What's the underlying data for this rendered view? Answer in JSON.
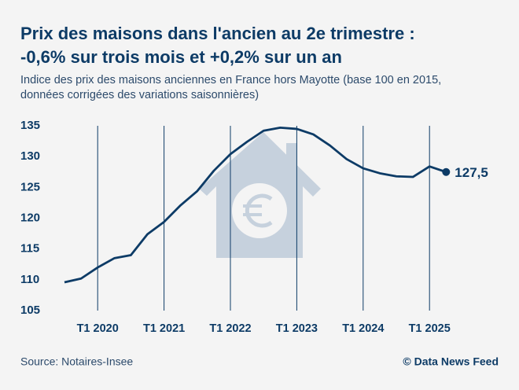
{
  "chart_data": {
    "type": "line",
    "title": [
      "Prix des maisons dans l'ancien au 2e trimestre :",
      "-0,6% sur trois mois et +0,2% sur un an"
    ],
    "subtitle": [
      "Indice des prix des maisons anciennes en France hors Mayotte (base 100 en 2015,",
      "données corrigées des variations saisonnières)"
    ],
    "categories": [
      null,
      null,
      "T1 2020",
      null,
      null,
      null,
      "T1 2021",
      null,
      null,
      null,
      "T1 2022",
      null,
      null,
      null,
      "T1 2023",
      null,
      null,
      null,
      "T1 2024",
      null,
      null,
      null,
      "T1 2025",
      null
    ],
    "series": [
      {
        "name": "Indice",
        "color": "#0d3b66",
        "values": [
          109.6,
          110.2,
          112.0,
          113.5,
          114.0,
          117.4,
          119.4,
          122.1,
          124.4,
          127.7,
          130.4,
          132.4,
          134.2,
          134.7,
          134.5,
          133.6,
          131.8,
          129.6,
          128.1,
          127.3,
          126.8,
          126.7,
          128.4,
          127.5
        ],
        "value_labels": [
          null,
          null,
          null,
          null,
          null,
          null,
          null,
          null,
          null,
          null,
          null,
          null,
          null,
          null,
          null,
          null,
          null,
          null,
          null,
          null,
          null,
          null,
          null,
          "127,5"
        ]
      }
    ],
    "ylim": [
      105,
      135
    ],
    "yticks": [
      105,
      110,
      115,
      120,
      125,
      130,
      135
    ],
    "source": "Source: Notaires-Insee",
    "credit": "© Data News Feed"
  }
}
